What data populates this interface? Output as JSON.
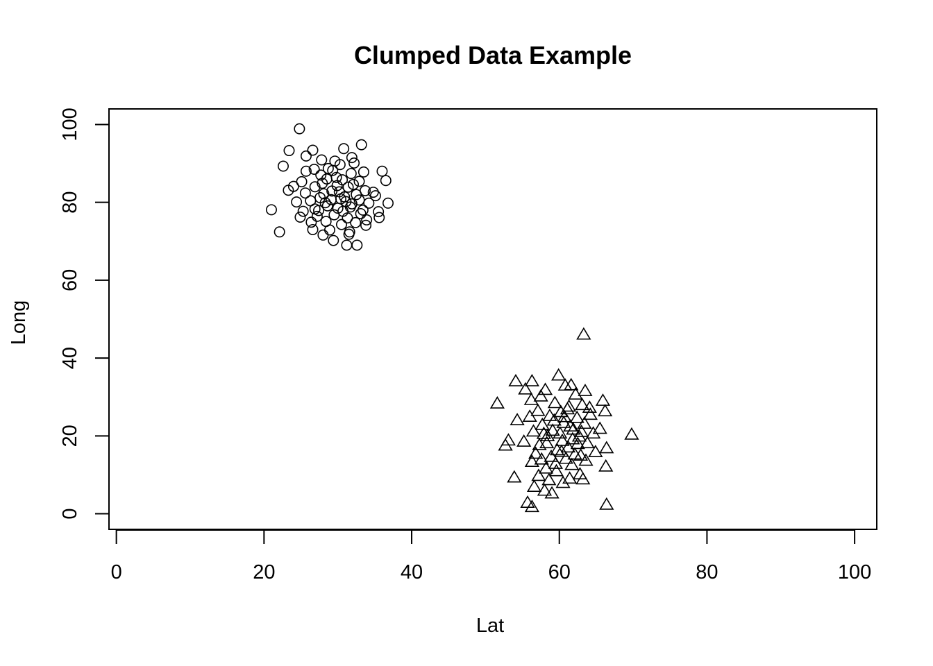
{
  "chart_data": {
    "type": "scatter",
    "title": "Clumped Data Example",
    "xlabel": "Lat",
    "ylabel": "Long",
    "xlim": [
      -1,
      103
    ],
    "ylim": [
      -4,
      104
    ],
    "x_ticks": [
      0,
      20,
      40,
      60,
      80,
      100
    ],
    "y_ticks": [
      0,
      20,
      40,
      60,
      80,
      100
    ],
    "grid": false,
    "legend": "none",
    "series": [
      {
        "marker": "circle",
        "points": [
          [
            24.8,
            98.9
          ],
          [
            33.2,
            94.8
          ],
          [
            30.8,
            93.8
          ],
          [
            23.4,
            93.3
          ],
          [
            26.6,
            93.4
          ],
          [
            25.7,
            91.9
          ],
          [
            31.9,
            91.5
          ],
          [
            27.8,
            90.9
          ],
          [
            29.6,
            90.6
          ],
          [
            32.2,
            90.1
          ],
          [
            22.6,
            89.3
          ],
          [
            30.3,
            89.7
          ],
          [
            28.7,
            88.7
          ],
          [
            33.5,
            87.8
          ],
          [
            36.0,
            88.0
          ],
          [
            25.7,
            88.0
          ],
          [
            26.8,
            88.5
          ],
          [
            29.3,
            88.2
          ],
          [
            31.8,
            87.4
          ],
          [
            27.7,
            87.0
          ],
          [
            36.5,
            85.6
          ],
          [
            25.1,
            85.3
          ],
          [
            28.5,
            86.0
          ],
          [
            30.6,
            85.8
          ],
          [
            32.9,
            85.4
          ],
          [
            24.0,
            84.1
          ],
          [
            26.9,
            84.0
          ],
          [
            29.9,
            84.3
          ],
          [
            31.4,
            83.9
          ],
          [
            34.8,
            82.6
          ],
          [
            23.3,
            83.1
          ],
          [
            25.6,
            82.4
          ],
          [
            28.1,
            82.2
          ],
          [
            30.2,
            82.7
          ],
          [
            32.5,
            82.0
          ],
          [
            33.7,
            83.0
          ],
          [
            35.1,
            81.7
          ],
          [
            24.4,
            80.1
          ],
          [
            26.3,
            80.4
          ],
          [
            27.6,
            81.2
          ],
          [
            29.1,
            80.7
          ],
          [
            31.1,
            80.2
          ],
          [
            32.9,
            80.6
          ],
          [
            34.2,
            79.8
          ],
          [
            36.8,
            79.8
          ],
          [
            21.0,
            78.1
          ],
          [
            25.3,
            77.7
          ],
          [
            26.9,
            78.3
          ],
          [
            28.6,
            79.1
          ],
          [
            30.0,
            78.5
          ],
          [
            31.7,
            78.8
          ],
          [
            33.4,
            78.0
          ],
          [
            35.5,
            77.6
          ],
          [
            24.9,
            76.2
          ],
          [
            27.2,
            76.4
          ],
          [
            29.5,
            76.8
          ],
          [
            31.3,
            76.0
          ],
          [
            33.9,
            75.5
          ],
          [
            35.6,
            76.1
          ],
          [
            26.4,
            74.9
          ],
          [
            28.4,
            75.1
          ],
          [
            30.5,
            74.3
          ],
          [
            32.4,
            74.8
          ],
          [
            33.8,
            74.1
          ],
          [
            26.6,
            73.0
          ],
          [
            28.9,
            72.9
          ],
          [
            31.6,
            72.4
          ],
          [
            22.1,
            72.4
          ],
          [
            28.0,
            71.6
          ],
          [
            31.5,
            71.8
          ],
          [
            29.4,
            70.2
          ],
          [
            31.2,
            69.0
          ],
          [
            32.6,
            69.0
          ],
          [
            27.9,
            84.9
          ],
          [
            29.8,
            86.4
          ],
          [
            30.9,
            81.4
          ],
          [
            31.9,
            79.6
          ],
          [
            29.2,
            82.9
          ],
          [
            30.4,
            80.9
          ],
          [
            28.3,
            79.9
          ],
          [
            32.1,
            84.6
          ],
          [
            27.4,
            77.9
          ],
          [
            33.1,
            77.1
          ],
          [
            30.7,
            77.7
          ]
        ]
      },
      {
        "marker": "triangle",
        "points": [
          [
            63.3,
            46.0
          ],
          [
            59.9,
            35.5
          ],
          [
            54.1,
            34.0
          ],
          [
            56.3,
            34.0
          ],
          [
            61.6,
            33.0
          ],
          [
            63.5,
            31.5
          ],
          [
            58.1,
            31.8
          ],
          [
            55.4,
            31.9
          ],
          [
            60.8,
            32.9
          ],
          [
            57.5,
            30.1
          ],
          [
            62.2,
            30.6
          ],
          [
            65.9,
            29.0
          ],
          [
            56.2,
            29.2
          ],
          [
            51.6,
            28.3
          ],
          [
            59.4,
            28.4
          ],
          [
            63.1,
            27.9
          ],
          [
            61.3,
            27.5
          ],
          [
            66.2,
            26.3
          ],
          [
            57.1,
            26.4
          ],
          [
            60.2,
            26.1
          ],
          [
            64.2,
            25.4
          ],
          [
            56.0,
            24.9
          ],
          [
            58.7,
            25.1
          ],
          [
            62.4,
            24.6
          ],
          [
            54.3,
            24.0
          ],
          [
            60.6,
            23.3
          ],
          [
            63.4,
            23.1
          ],
          [
            57.7,
            22.8
          ],
          [
            65.5,
            21.8
          ],
          [
            69.8,
            20.3
          ],
          [
            59.1,
            21.3
          ],
          [
            61.9,
            21.6
          ],
          [
            56.5,
            21.1
          ],
          [
            64.6,
            20.6
          ],
          [
            58.4,
            19.9
          ],
          [
            62.7,
            19.8
          ],
          [
            53.1,
            18.8
          ],
          [
            55.2,
            18.5
          ],
          [
            60.4,
            18.7
          ],
          [
            63.8,
            18.1
          ],
          [
            52.7,
            17.5
          ],
          [
            57.3,
            17.6
          ],
          [
            61.2,
            17.0
          ],
          [
            66.4,
            16.8
          ],
          [
            59.7,
            16.3
          ],
          [
            64.9,
            15.8
          ],
          [
            56.8,
            15.4
          ],
          [
            62.1,
            15.2
          ],
          [
            58.9,
            14.6
          ],
          [
            60.9,
            14.1
          ],
          [
            63.6,
            13.6
          ],
          [
            56.3,
            13.3
          ],
          [
            61.7,
            12.5
          ],
          [
            66.3,
            12.1
          ],
          [
            58.2,
            11.6
          ],
          [
            59.6,
            10.9
          ],
          [
            62.8,
            10.1
          ],
          [
            57.2,
            9.7
          ],
          [
            53.9,
            9.3
          ],
          [
            61.4,
            9.0
          ],
          [
            58.6,
            8.6
          ],
          [
            63.2,
            8.8
          ],
          [
            60.5,
            7.9
          ],
          [
            56.6,
            6.9
          ],
          [
            58.0,
            5.9
          ],
          [
            59.0,
            5.2
          ],
          [
            55.7,
            2.8
          ],
          [
            56.3,
            1.7
          ],
          [
            66.4,
            2.3
          ],
          [
            60.1,
            20.6
          ],
          [
            61.5,
            22.4
          ],
          [
            59.3,
            23.9
          ],
          [
            62.5,
            17.9
          ],
          [
            58.3,
            18.1
          ],
          [
            60.7,
            24.8
          ],
          [
            61.8,
            19.1
          ],
          [
            57.9,
            20.5
          ],
          [
            63.0,
            21.0
          ],
          [
            60.3,
            15.9
          ],
          [
            59.5,
            12.8
          ],
          [
            61.1,
            26.8
          ],
          [
            64.1,
            27.2
          ],
          [
            57.6,
            13.9
          ],
          [
            62.9,
            14.9
          ]
        ]
      }
    ]
  }
}
